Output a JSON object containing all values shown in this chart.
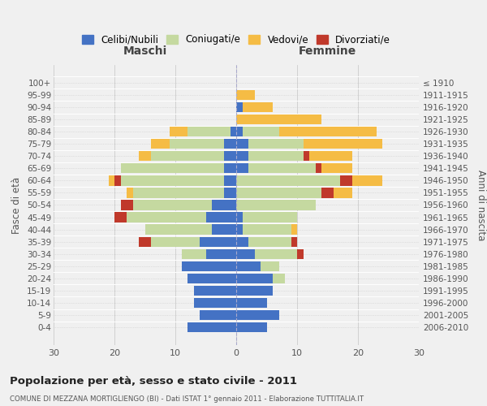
{
  "age_groups": [
    "0-4",
    "5-9",
    "10-14",
    "15-19",
    "20-24",
    "25-29",
    "30-34",
    "35-39",
    "40-44",
    "45-49",
    "50-54",
    "55-59",
    "60-64",
    "65-69",
    "70-74",
    "75-79",
    "80-84",
    "85-89",
    "90-94",
    "95-99",
    "100+"
  ],
  "birth_years": [
    "2006-2010",
    "2001-2005",
    "1996-2000",
    "1991-1995",
    "1986-1990",
    "1981-1985",
    "1976-1980",
    "1971-1975",
    "1966-1970",
    "1961-1965",
    "1956-1960",
    "1951-1955",
    "1946-1950",
    "1941-1945",
    "1936-1940",
    "1931-1935",
    "1926-1930",
    "1921-1925",
    "1916-1920",
    "1911-1915",
    "≤ 1910"
  ],
  "colors": {
    "celibi": "#4472C4",
    "coniugati": "#c5d9a0",
    "vedovi": "#f5bc45",
    "divorziati": "#c0392b"
  },
  "males": {
    "celibi": [
      8,
      6,
      7,
      7,
      8,
      9,
      5,
      6,
      4,
      5,
      4,
      2,
      2,
      2,
      2,
      2,
      1,
      0,
      0,
      0,
      0
    ],
    "coniugati": [
      0,
      0,
      0,
      0,
      0,
      0,
      4,
      8,
      11,
      13,
      13,
      15,
      17,
      17,
      12,
      9,
      7,
      0,
      0,
      0,
      0
    ],
    "vedovi": [
      0,
      0,
      0,
      0,
      0,
      0,
      0,
      0,
      0,
      0,
      0,
      1,
      2,
      0,
      2,
      3,
      3,
      0,
      0,
      0,
      0
    ],
    "divorziati": [
      0,
      0,
      0,
      0,
      0,
      0,
      0,
      2,
      0,
      2,
      2,
      0,
      1,
      0,
      0,
      0,
      0,
      0,
      0,
      0,
      0
    ]
  },
  "females": {
    "celibi": [
      5,
      7,
      5,
      6,
      6,
      4,
      3,
      2,
      1,
      1,
      0,
      0,
      0,
      2,
      2,
      2,
      1,
      0,
      1,
      0,
      0
    ],
    "coniugati": [
      0,
      0,
      0,
      0,
      2,
      3,
      7,
      7,
      8,
      9,
      13,
      14,
      17,
      11,
      9,
      9,
      6,
      0,
      0,
      0,
      0
    ],
    "vedovi": [
      0,
      0,
      0,
      0,
      0,
      0,
      0,
      0,
      1,
      0,
      0,
      5,
      7,
      6,
      8,
      13,
      16,
      14,
      5,
      3,
      0
    ],
    "divorziati": [
      0,
      0,
      0,
      0,
      0,
      0,
      1,
      1,
      0,
      0,
      0,
      2,
      2,
      1,
      1,
      0,
      0,
      0,
      0,
      0,
      0
    ]
  },
  "xlim": 30,
  "title": "Popolazione per età, sesso e stato civile - 2011",
  "subtitle": "COMUNE DI MEZZANA MORTIGLIENGO (BI) - Dati ISTAT 1° gennaio 2011 - Elaborazione TUTTITALIA.IT",
  "ylabel_left": "Fasce di età",
  "ylabel_right": "Anni di nascita",
  "xlabel_left": "Maschi",
  "xlabel_right": "Femmine",
  "bg_color": "#f0f0f0",
  "bar_height": 0.82,
  "legend_labels": [
    "Celibi/Nubili",
    "Coniugati/e",
    "Vedovi/e",
    "Divorziati/e"
  ]
}
